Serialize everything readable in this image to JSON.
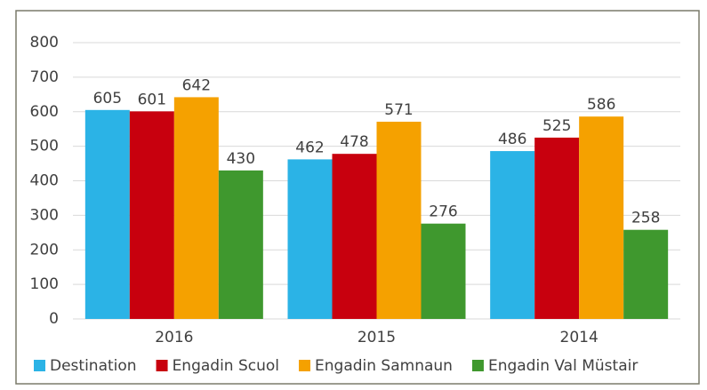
{
  "chart_data": {
    "type": "bar",
    "categories": [
      "2016",
      "2015",
      "2014"
    ],
    "series": [
      {
        "name": "Destination",
        "color": "#2bb3e6",
        "values": [
          605,
          462,
          486
        ]
      },
      {
        "name": "Engadin Scuol",
        "color": "#c8000e",
        "values": [
          601,
          478,
          525
        ]
      },
      {
        "name": "Engadin Samnaun",
        "color": "#f5a100",
        "values": [
          642,
          571,
          586
        ]
      },
      {
        "name": "Engadin Val Müstair",
        "color": "#3f982e",
        "values": [
          430,
          276,
          258
        ]
      }
    ],
    "ylim": [
      0,
      800
    ],
    "yticks": [
      0,
      100,
      200,
      300,
      400,
      500,
      600,
      700,
      800
    ],
    "grid": true,
    "legend": "bottom"
  }
}
